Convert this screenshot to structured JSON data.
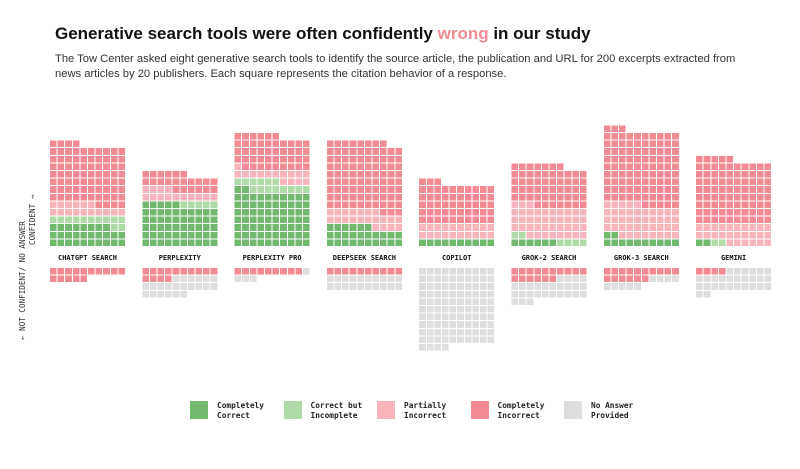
{
  "title": {
    "before": "Generative search tools were often confidently ",
    "highlight": "wrong",
    "after": " in our study"
  },
  "subtitle": "The Tow Center asked eight generative search tools to identify the source article, the publication and URL for 200 excerpts extracted from news articles by 20 publishers. Each square represents the citation behavior of a response.",
  "axis": {
    "confident": "CONFIDENT →",
    "not_confident": "← NOT CONFIDENT/ NO ANSWER"
  },
  "colors": {
    "completely_correct": "#71b96c",
    "correct_but_incomplete": "#aedba8",
    "partially_incorrect": "#f7b5bb",
    "completely_incorrect": "#f28a93",
    "no_answer": "#dedede"
  },
  "legend": [
    {
      "key": "completely_correct",
      "label": "Completely Correct"
    },
    {
      "key": "correct_but_incomplete",
      "label": "Correct but Incomplete"
    },
    {
      "key": "partially_incorrect",
      "label": "Partially Incorrect"
    },
    {
      "key": "completely_incorrect",
      "label": "Completely Incorrect"
    },
    {
      "key": "no_answer",
      "label": "No Answer Provided"
    }
  ],
  "chart_data": {
    "type": "waffle",
    "unit": "Each square represents the citation behavior of a response.",
    "tools": [
      {
        "name": "CHATGPT SEARCH",
        "confident": {
          "completely_correct": 28,
          "correct_but_incomplete": 12,
          "partially_incorrect": 16,
          "completely_incorrect": 78
        },
        "not_confident": {
          "completely_incorrect": 15
        }
      },
      {
        "name": "PERPLEXITY",
        "confident": {
          "completely_correct": 55,
          "correct_but_incomplete": 5,
          "partially_incorrect": 14,
          "completely_incorrect": 22
        },
        "not_confident": {
          "completely_incorrect": 14,
          "no_answer": 22
        }
      },
      {
        "name": "PERPLEXITY PRO",
        "confident": {
          "completely_correct": 72,
          "correct_but_incomplete": 14,
          "partially_incorrect": 15,
          "completely_incorrect": 45
        },
        "not_confident": {
          "no_answer": 4,
          "completely_incorrect": 9
        }
      },
      {
        "name": "DEEPSEEK SEARCH",
        "confident": {
          "completely_correct": 26,
          "partially_incorrect": 21,
          "completely_incorrect": 91
        },
        "not_confident": {
          "completely_incorrect": 10,
          "no_answer": 20
        }
      },
      {
        "name": "COPILOT",
        "confident": {
          "completely_correct": 10,
          "partially_incorrect": 20,
          "completely_incorrect": 53
        },
        "not_confident": {
          "completely_incorrect": 0,
          "no_answer": 104
        }
      },
      {
        "name": "GROK-2 SEARCH",
        "confident": {
          "completely_correct": 6,
          "correct_but_incomplete": 6,
          "partially_incorrect": 41,
          "completely_incorrect": 54
        },
        "not_confident": {
          "completely_incorrect": 16,
          "no_answer": 27
        }
      },
      {
        "name": "GROK-3 SEARCH",
        "confident": {
          "completely_correct": 12,
          "partially_incorrect": 43,
          "completely_incorrect": 98
        },
        "not_confident": {
          "completely_incorrect": 16,
          "no_answer": 9
        }
      },
      {
        "name": "GEMINI",
        "confident": {
          "completely_correct": 2,
          "correct_but_incomplete": 2,
          "partially_incorrect": 26,
          "completely_incorrect": 85
        },
        "not_confident": {
          "completely_incorrect": 4,
          "no_answer": 28
        }
      }
    ]
  }
}
